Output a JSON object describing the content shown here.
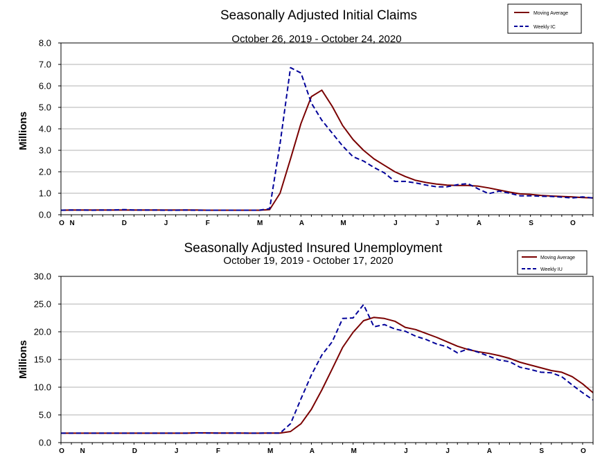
{
  "colors": {
    "moving_average": "#7a0000",
    "weekly": "#000099",
    "grid": "#b0b0b0"
  },
  "chart_data": [
    {
      "type": "line",
      "title": "Seasonally Adjusted Initial Claims",
      "subtitle": "October 26, 2019 - October 24, 2020",
      "ylabel": "Millions",
      "xlabel": "",
      "ylim": [
        0,
        8
      ],
      "yticks": [
        "0.0",
        "1.0",
        "2.0",
        "3.0",
        "4.0",
        "5.0",
        "6.0",
        "7.0",
        "8.0"
      ],
      "xticks": [
        {
          "label": "O",
          "week": 0
        },
        {
          "label": "N",
          "week": 1
        },
        {
          "label": "D",
          "week": 6
        },
        {
          "label": "J",
          "week": 10
        },
        {
          "label": "F",
          "week": 14
        },
        {
          "label": "M",
          "week": 19
        },
        {
          "label": "A",
          "week": 23
        },
        {
          "label": "M",
          "week": 27
        },
        {
          "label": "J",
          "week": 32
        },
        {
          "label": "J",
          "week": 36
        },
        {
          "label": "A",
          "week": 40
        },
        {
          "label": "S",
          "week": 45
        },
        {
          "label": "O",
          "week": 49
        }
      ],
      "grid": true,
      "legend": "top-right",
      "series": [
        {
          "name": "Moving Average",
          "style": "solid",
          "values": [
            0.21,
            0.22,
            0.22,
            0.22,
            0.22,
            0.22,
            0.22,
            0.22,
            0.22,
            0.22,
            0.22,
            0.22,
            0.22,
            0.22,
            0.21,
            0.21,
            0.21,
            0.21,
            0.21,
            0.21,
            0.24,
            1.0,
            2.6,
            4.25,
            5.5,
            5.8,
            5.05,
            4.15,
            3.5,
            3.0,
            2.6,
            2.3,
            2.0,
            1.78,
            1.6,
            1.5,
            1.43,
            1.38,
            1.36,
            1.36,
            1.33,
            1.25,
            1.15,
            1.05,
            0.97,
            0.95,
            0.9,
            0.87,
            0.85,
            0.83,
            0.8,
            0.78
          ]
        },
        {
          "name": "Weekly IC",
          "style": "dashed",
          "values": [
            0.21,
            0.22,
            0.22,
            0.21,
            0.22,
            0.22,
            0.24,
            0.22,
            0.22,
            0.22,
            0.21,
            0.21,
            0.22,
            0.21,
            0.21,
            0.21,
            0.21,
            0.21,
            0.21,
            0.21,
            0.28,
            3.3,
            6.85,
            6.6,
            5.2,
            4.4,
            3.8,
            3.2,
            2.7,
            2.5,
            2.2,
            1.95,
            1.55,
            1.55,
            1.48,
            1.38,
            1.3,
            1.3,
            1.4,
            1.45,
            1.2,
            0.98,
            1.1,
            1.0,
            0.88,
            0.88,
            0.86,
            0.85,
            0.82,
            0.78,
            0.83,
            0.78
          ]
        }
      ]
    },
    {
      "type": "line",
      "title": "Seasonally Adjusted Insured Unemployment",
      "subtitle": "October 19, 2019 - October 17, 2020",
      "ylabel": "Millions",
      "xlabel": "",
      "ylim": [
        0,
        30
      ],
      "yticks": [
        "0.0",
        "5.0",
        "10.0",
        "15.0",
        "20.0",
        "25.0",
        "30.0"
      ],
      "xticks": [
        {
          "label": "O",
          "week": 0
        },
        {
          "label": "N",
          "week": 2
        },
        {
          "label": "D",
          "week": 7
        },
        {
          "label": "J",
          "week": 11
        },
        {
          "label": "F",
          "week": 15
        },
        {
          "label": "M",
          "week": 20
        },
        {
          "label": "A",
          "week": 24
        },
        {
          "label": "M",
          "week": 28
        },
        {
          "label": "J",
          "week": 33
        },
        {
          "label": "J",
          "week": 37
        },
        {
          "label": "A",
          "week": 41
        },
        {
          "label": "S",
          "week": 46
        },
        {
          "label": "O",
          "week": 50
        }
      ],
      "grid": true,
      "legend": "top-right",
      "series": [
        {
          "name": "Moving Average",
          "style": "solid",
          "values": [
            1.7,
            1.7,
            1.7,
            1.7,
            1.7,
            1.7,
            1.7,
            1.7,
            1.7,
            1.7,
            1.7,
            1.7,
            1.7,
            1.75,
            1.75,
            1.72,
            1.72,
            1.72,
            1.7,
            1.7,
            1.72,
            1.72,
            2.0,
            3.4,
            6.0,
            9.5,
            13.3,
            17.2,
            19.9,
            22.0,
            22.6,
            22.4,
            21.9,
            20.8,
            20.4,
            19.7,
            19.0,
            18.2,
            17.4,
            16.8,
            16.4,
            16.1,
            15.7,
            15.2,
            14.5,
            14.0,
            13.5,
            13.0,
            12.7,
            11.9,
            10.6,
            9.0
          ]
        },
        {
          "name": "Weekly IU",
          "style": "dashed",
          "values": [
            1.7,
            1.7,
            1.7,
            1.7,
            1.7,
            1.7,
            1.7,
            1.7,
            1.7,
            1.7,
            1.7,
            1.7,
            1.7,
            1.75,
            1.72,
            1.72,
            1.72,
            1.72,
            1.7,
            1.7,
            1.72,
            1.72,
            3.4,
            7.9,
            12.2,
            15.8,
            18.2,
            22.4,
            22.5,
            24.9,
            20.9,
            21.3,
            20.5,
            20.1,
            19.2,
            18.6,
            17.8,
            17.3,
            16.2,
            16.9,
            16.3,
            15.6,
            14.9,
            14.6,
            13.6,
            13.2,
            12.7,
            12.6,
            11.9,
            10.4,
            9.0,
            7.7
          ]
        }
      ]
    }
  ]
}
